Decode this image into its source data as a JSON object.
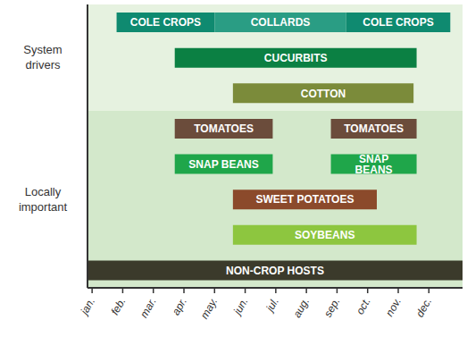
{
  "chart_data": {
    "type": "bar",
    "orientation": "horizontal",
    "tick_labels": "x",
    "xlim": [
      0.85,
      13.1
    ],
    "xticks": [
      {
        "value": 1,
        "label": "jan."
      },
      {
        "value": 2,
        "label": "feb."
      },
      {
        "value": 3,
        "label": "mar."
      },
      {
        "value": 4,
        "label": "apr."
      },
      {
        "value": 5,
        "label": "may."
      },
      {
        "value": 6,
        "label": "jun."
      },
      {
        "value": 7,
        "label": "jul."
      },
      {
        "value": 8,
        "label": "aug."
      },
      {
        "value": 9,
        "label": "sep."
      },
      {
        "value": 10,
        "label": "oct."
      },
      {
        "value": 11,
        "label": "nov."
      },
      {
        "value": 12,
        "label": "dec."
      }
    ],
    "groups": [
      {
        "name": "System drivers",
        "rows": [
          [
            {
              "name": "COLE CROPS",
              "start": 1.8,
              "end": 5.0,
              "color": "#0f8a70"
            },
            {
              "name": "COLLARDS",
              "start": 5.0,
              "end": 9.3,
              "color": "#2a9d84"
            },
            {
              "name": "COLE CROPS",
              "start": 9.3,
              "end": 12.7,
              "color": "#0f8a70"
            }
          ],
          [
            {
              "name": "CUCURBITS",
              "start": 3.7,
              "end": 11.6,
              "color": "#0b8043"
            }
          ],
          [
            {
              "name": "COTTON",
              "start": 5.6,
              "end": 11.5,
              "color": "#7b8b3a"
            }
          ]
        ]
      },
      {
        "name": "Locally important",
        "rows": [
          [
            {
              "name": "TOMATOES",
              "start": 3.7,
              "end": 6.9,
              "color": "#6b4c3b"
            },
            {
              "name": "TOMATOES",
              "start": 8.8,
              "end": 11.6,
              "color": "#6b4c3b"
            }
          ],
          [
            {
              "name": "SNAP BEANS",
              "start": 3.7,
              "end": 6.9,
              "color": "#1fa64a"
            },
            {
              "name": "SNAP BEANS",
              "start": 8.8,
              "end": 11.6,
              "color": "#1fa64a"
            }
          ],
          [
            {
              "name": "SWEET POTATOES",
              "start": 5.6,
              "end": 10.3,
              "color": "#8b4a2b"
            }
          ],
          [
            {
              "name": "SOYBEANS",
              "start": 5.6,
              "end": 11.6,
              "color": "#8dc63f"
            }
          ],
          [
            {
              "name": "NON-CROP HOSTS",
              "start": 0.85,
              "end": 13.1,
              "color": "#3b3a2b"
            }
          ]
        ]
      }
    ]
  }
}
